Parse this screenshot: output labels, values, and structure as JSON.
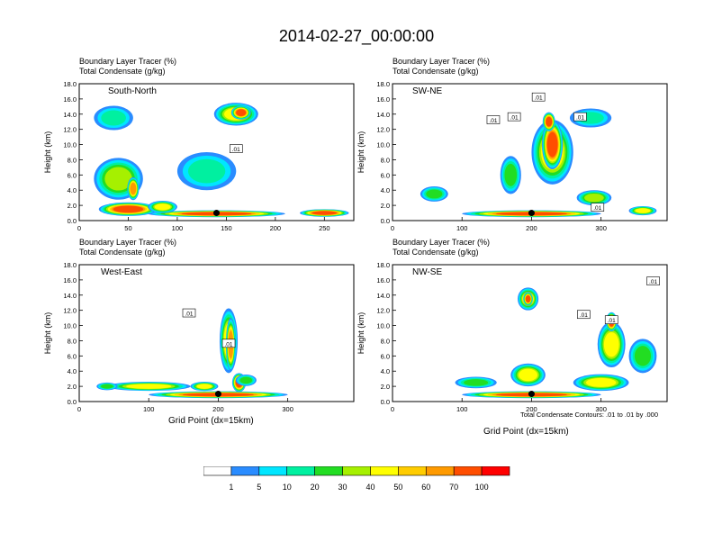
{
  "title": "2014-02-27_00:00:00",
  "colors": {
    "white": "#ffffff",
    "blue": "#2a8cff",
    "cyan": "#00e6ff",
    "aqua_green": "#00f0a0",
    "green": "#22dd22",
    "light_green": "#a6f000",
    "yellow": "#ffff00",
    "gold": "#ffcc00",
    "orange": "#ff9a00",
    "red_orange": "#ff4e00",
    "red": "#ff0000",
    "contour": "#000000"
  },
  "colorbar": {
    "labels": [
      "1",
      "5",
      "10",
      "20",
      "30",
      "40",
      "50",
      "60",
      "70",
      "100"
    ],
    "bin_colors": [
      "#ffffff",
      "#2a8cff",
      "#00e6ff",
      "#00f0a0",
      "#22dd22",
      "#a6f000",
      "#ffff00",
      "#ffcc00",
      "#ff9a00",
      "#ff4e00",
      "#ff0000"
    ]
  },
  "chart_data": [
    {
      "type": "heatmap",
      "panel": "South-North",
      "header_line1": "Boundary Layer Tracer   (%)",
      "header_line2": "Total Condensate   (g/kg)",
      "region_label": "South-North",
      "ylabel": "Height (km)",
      "xlabel": "",
      "xlim": [
        0,
        280
      ],
      "ylim": [
        0,
        18
      ],
      "xticks": [
        "0",
        "50",
        "100",
        "150",
        "200",
        "250"
      ],
      "xtick_values": [
        0,
        50,
        100,
        150,
        200,
        250
      ],
      "yticks": [
        "0.0",
        "2.0",
        "4.0",
        "6.0",
        "8.0",
        "10.0",
        "12.0",
        "14.0",
        "16.0",
        "18.0"
      ],
      "marker": {
        "x": 140,
        "y": 1.0
      },
      "contour_labels": [
        {
          "text": ".01",
          "x": 160,
          "y": 9.4
        }
      ],
      "tracer_blobs": [
        {
          "x": 140,
          "y": 0.9,
          "w": 140,
          "h": 0.9,
          "pct": 85
        },
        {
          "x": 50,
          "y": 1.5,
          "w": 60,
          "h": 1.8,
          "pct": 75
        },
        {
          "x": 40,
          "y": 5.5,
          "w": 50,
          "h": 5.5,
          "pct": 32
        },
        {
          "x": 55,
          "y": 4.2,
          "w": 12,
          "h": 3.0,
          "pct": 65
        },
        {
          "x": 35,
          "y": 13.5,
          "w": 40,
          "h": 3.2,
          "pct": 10
        },
        {
          "x": 130,
          "y": 6.5,
          "w": 60,
          "h": 5.0,
          "pct": 14
        },
        {
          "x": 160,
          "y": 14.0,
          "w": 45,
          "h": 3.0,
          "pct": 40
        },
        {
          "x": 165,
          "y": 14.2,
          "w": 20,
          "h": 1.8,
          "pct": 72
        },
        {
          "x": 85,
          "y": 1.8,
          "w": 30,
          "h": 1.6,
          "pct": 45
        },
        {
          "x": 250,
          "y": 1.0,
          "w": 50,
          "h": 1.0,
          "pct": 70
        }
      ]
    },
    {
      "type": "heatmap",
      "panel": "SW-NE",
      "header_line1": "Boundary Layer Tracer   (%)",
      "header_line2": "Total Condensate   (g/kg)",
      "region_label": "SW-NE",
      "ylabel": "Height (km)",
      "xlabel": "",
      "xlim": [
        0,
        395
      ],
      "ylim": [
        0,
        18
      ],
      "xticks": [
        "0",
        "100",
        "200",
        "300"
      ],
      "xtick_values": [
        0,
        100,
        200,
        300
      ],
      "yticks": [
        "0.0",
        "2.0",
        "4.0",
        "6.0",
        "8.0",
        "10.0",
        "12.0",
        "14.0",
        "16.0",
        "18.0"
      ],
      "marker": {
        "x": 200,
        "y": 1.0
      },
      "contour_labels": [
        {
          "text": ".01",
          "x": 210,
          "y": 16.2
        },
        {
          "text": ".01",
          "x": 175,
          "y": 13.6
        },
        {
          "text": ".01",
          "x": 145,
          "y": 13.2
        },
        {
          "text": ".01",
          "x": 270,
          "y": 13.6
        },
        {
          "text": ".01",
          "x": 295,
          "y": 1.7
        }
      ],
      "tracer_blobs": [
        {
          "x": 200,
          "y": 0.9,
          "w": 200,
          "h": 0.9,
          "pct": 85
        },
        {
          "x": 230,
          "y": 9.0,
          "w": 60,
          "h": 8.5,
          "pct": 42
        },
        {
          "x": 230,
          "y": 10.0,
          "w": 30,
          "h": 6.5,
          "pct": 72
        },
        {
          "x": 225,
          "y": 13.0,
          "w": 18,
          "h": 2.5,
          "pct": 95
        },
        {
          "x": 285,
          "y": 13.5,
          "w": 60,
          "h": 2.5,
          "pct": 14
        },
        {
          "x": 170,
          "y": 6.0,
          "w": 30,
          "h": 5.0,
          "pct": 25
        },
        {
          "x": 60,
          "y": 3.5,
          "w": 40,
          "h": 2.0,
          "pct": 25
        },
        {
          "x": 290,
          "y": 3.0,
          "w": 50,
          "h": 2.0,
          "pct": 30
        },
        {
          "x": 360,
          "y": 1.3,
          "w": 40,
          "h": 1.2,
          "pct": 40
        }
      ]
    },
    {
      "type": "heatmap",
      "panel": "West-East",
      "header_line1": "Boundary Layer Tracer   (%)",
      "header_line2": "Total Condensate   (g/kg)",
      "region_label": "West-East",
      "ylabel": "Height (km)",
      "xlabel": "Grid Point (dx=15km)",
      "xlim": [
        0,
        395
      ],
      "ylim": [
        0,
        18
      ],
      "xticks": [
        "0",
        "100",
        "200",
        "300"
      ],
      "xtick_values": [
        0,
        100,
        200,
        300
      ],
      "yticks": [
        "0.0",
        "2.0",
        "4.0",
        "6.0",
        "8.0",
        "10.0",
        "12.0",
        "14.0",
        "16.0",
        "18.0"
      ],
      "marker": {
        "x": 200,
        "y": 1.0
      },
      "contour_labels": [
        {
          "text": ".01",
          "x": 158,
          "y": 11.6
        },
        {
          "text": ".01",
          "x": 215,
          "y": 7.6
        }
      ],
      "tracer_blobs": [
        {
          "x": 200,
          "y": 0.9,
          "w": 200,
          "h": 0.9,
          "pct": 80
        },
        {
          "x": 215,
          "y": 8.0,
          "w": 26,
          "h": 8.5,
          "pct": 42
        },
        {
          "x": 218,
          "y": 7.5,
          "w": 14,
          "h": 7.0,
          "pct": 66
        },
        {
          "x": 230,
          "y": 2.5,
          "w": 20,
          "h": 2.5,
          "pct": 95
        },
        {
          "x": 100,
          "y": 2.0,
          "w": 120,
          "h": 1.2,
          "pct": 40
        },
        {
          "x": 40,
          "y": 2.0,
          "w": 30,
          "h": 1.0,
          "pct": 22
        },
        {
          "x": 240,
          "y": 2.8,
          "w": 30,
          "h": 1.5,
          "pct": 25
        },
        {
          "x": 180,
          "y": 2.0,
          "w": 40,
          "h": 1.2,
          "pct": 40
        }
      ]
    },
    {
      "type": "heatmap",
      "panel": "NW-SE",
      "header_line1": "Boundary Layer Tracer   (%)",
      "header_line2": "Total Condensate   (g/kg)",
      "region_label": "NW-SE",
      "ylabel": "Height (km)",
      "xlabel": "Grid Point (dx=15km)",
      "xlim": [
        0,
        395
      ],
      "ylim": [
        0,
        18
      ],
      "xticks": [
        "0",
        "100",
        "200",
        "300"
      ],
      "xtick_values": [
        0,
        100,
        200,
        300
      ],
      "yticks": [
        "0.0",
        "2.0",
        "4.0",
        "6.0",
        "8.0",
        "10.0",
        "12.0",
        "14.0",
        "16.0",
        "18.0"
      ],
      "marker": {
        "x": 200,
        "y": 1.0
      },
      "contour_labels": [
        {
          "text": ".01",
          "x": 375,
          "y": 15.8
        },
        {
          "text": ".01",
          "x": 275,
          "y": 11.4
        },
        {
          "text": ".01",
          "x": 315,
          "y": 10.7
        }
      ],
      "tracer_blobs": [
        {
          "x": 200,
          "y": 0.9,
          "w": 200,
          "h": 0.9,
          "pct": 80
        },
        {
          "x": 195,
          "y": 13.5,
          "w": 30,
          "h": 3.0,
          "pct": 40
        },
        {
          "x": 195,
          "y": 13.5,
          "w": 14,
          "h": 1.8,
          "pct": 70
        },
        {
          "x": 315,
          "y": 7.5,
          "w": 40,
          "h": 6.0,
          "pct": 42
        },
        {
          "x": 315,
          "y": 10.5,
          "w": 16,
          "h": 2.5,
          "pct": 72
        },
        {
          "x": 195,
          "y": 3.5,
          "w": 50,
          "h": 3.0,
          "pct": 45
        },
        {
          "x": 360,
          "y": 6.0,
          "w": 40,
          "h": 4.5,
          "pct": 20
        },
        {
          "x": 120,
          "y": 2.5,
          "w": 60,
          "h": 1.5,
          "pct": 22
        },
        {
          "x": 300,
          "y": 2.5,
          "w": 80,
          "h": 2.2,
          "pct": 40
        }
      ],
      "footnote": "Total Condensate Contours: .01 to .01 by .000"
    }
  ]
}
